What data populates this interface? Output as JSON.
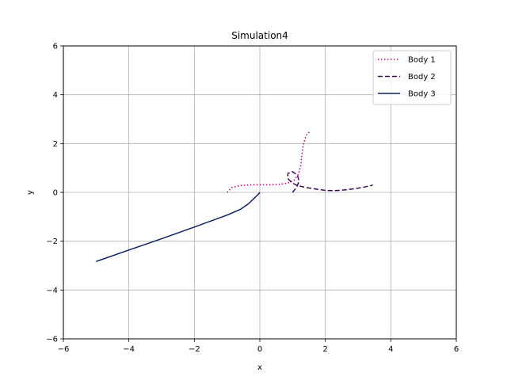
{
  "chart_data": {
    "type": "line",
    "title": "Simulation4",
    "xlabel": "x",
    "ylabel": "y",
    "xlim": [
      -6,
      6
    ],
    "ylim": [
      -6,
      6
    ],
    "xticks": [
      -6,
      -4,
      -2,
      0,
      2,
      4,
      6
    ],
    "yticks": [
      -6,
      -4,
      -2,
      0,
      2,
      4,
      6
    ],
    "grid": true,
    "legend_position": "top-right",
    "series": [
      {
        "name": "Body 1",
        "color": "#b5007f",
        "dash": "dotted",
        "x": [
          -1.0,
          -0.85,
          -0.6,
          -0.3,
          0.0,
          0.3,
          0.6,
          0.85,
          1.05,
          1.18,
          1.25,
          1.28,
          1.32,
          1.38,
          1.45,
          1.55
        ],
        "y": [
          0.0,
          0.2,
          0.28,
          0.31,
          0.31,
          0.31,
          0.33,
          0.38,
          0.5,
          0.75,
          1.1,
          1.5,
          1.9,
          2.2,
          2.4,
          2.52
        ]
      },
      {
        "name": "Body 2",
        "color": "#3a0855",
        "dash": "dashed",
        "x": [
          1.0,
          1.12,
          1.2,
          1.15,
          1.0,
          0.86,
          0.85,
          0.97,
          1.15,
          1.4,
          1.7,
          2.0,
          2.3,
          2.6,
          2.9,
          3.2,
          3.45
        ],
        "y": [
          0.0,
          0.2,
          0.45,
          0.7,
          0.85,
          0.78,
          0.58,
          0.4,
          0.28,
          0.2,
          0.14,
          0.08,
          0.07,
          0.1,
          0.15,
          0.22,
          0.3
        ]
      },
      {
        "name": "Body 3",
        "color": "#0c2160",
        "dash": "solid",
        "x": [
          -5.0,
          -4.0,
          -3.0,
          -2.0,
          -1.0,
          -0.6,
          -0.35,
          -0.18,
          -0.05,
          0.0
        ],
        "y": [
          -2.83,
          -2.36,
          -1.9,
          -1.42,
          -0.93,
          -0.7,
          -0.47,
          -0.25,
          -0.08,
          0.0
        ]
      }
    ]
  }
}
